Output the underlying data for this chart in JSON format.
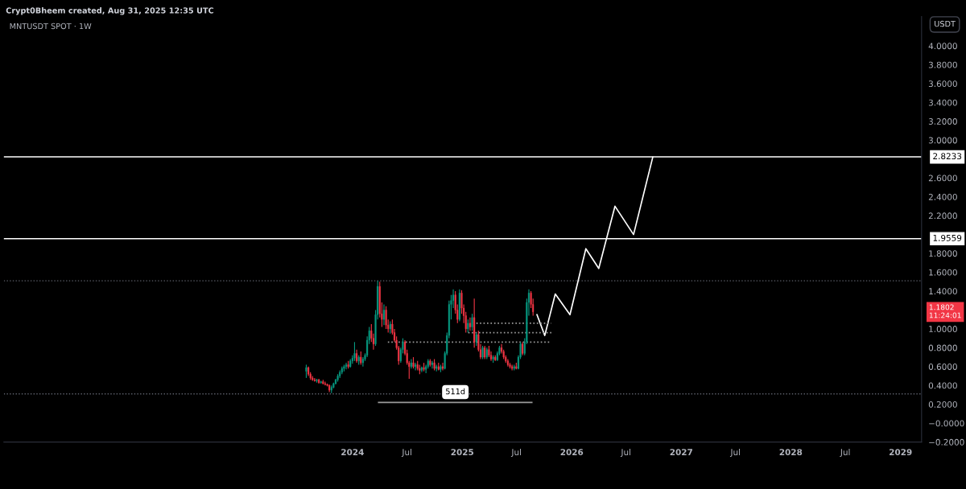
{
  "chart_data": {
    "type": "candlestick",
    "title": "MNTUSDT SPOT · 1W",
    "annotations": [
      "Crypt0Bheem created, Aug 31, 2025 12:35 UTC",
      "USDT",
      "1.1802\n11:24:01",
      {
        "text": "511d",
        "x": "2024-12-09",
        "y": 0.33
      }
    ],
    "x": [
      "2023-07-31",
      "2023-08-07",
      "2023-08-14",
      "2023-08-21",
      "2023-08-28",
      "2023-09-04",
      "2023-09-11",
      "2023-09-18",
      "2023-09-25",
      "2023-10-02",
      "2023-10-09",
      "2023-10-16",
      "2023-10-23",
      "2023-10-30",
      "2023-11-06",
      "2023-11-13",
      "2023-11-20",
      "2023-11-27",
      "2023-12-04",
      "2023-12-11",
      "2023-12-18",
      "2023-12-25",
      "2024-01-01",
      "2024-01-08",
      "2024-01-15",
      "2024-01-22",
      "2024-01-29",
      "2024-02-05",
      "2024-02-12",
      "2024-02-19",
      "2024-02-26",
      "2024-03-04",
      "2024-03-11",
      "2024-03-18",
      "2024-03-25",
      "2024-04-01",
      "2024-04-08",
      "2024-04-15",
      "2024-04-22",
      "2024-04-29",
      "2024-05-06",
      "2024-05-13",
      "2024-05-20",
      "2024-05-27",
      "2024-06-03",
      "2024-06-10",
      "2024-06-17",
      "2024-06-24",
      "2024-07-01",
      "2024-07-08",
      "2024-07-15",
      "2024-07-22",
      "2024-07-29",
      "2024-08-05",
      "2024-08-12",
      "2024-08-19",
      "2024-08-26",
      "2024-09-02",
      "2024-09-09",
      "2024-09-16",
      "2024-09-23",
      "2024-09-30",
      "2024-10-07",
      "2024-10-14",
      "2024-10-21",
      "2024-10-28",
      "2024-11-04",
      "2024-11-11",
      "2024-11-18",
      "2024-11-25",
      "2024-12-02",
      "2024-12-09",
      "2024-12-16",
      "2024-12-23",
      "2024-12-30",
      "2025-01-06",
      "2025-01-13",
      "2025-01-20",
      "2025-01-27",
      "2025-02-03",
      "2025-02-10",
      "2025-02-17",
      "2025-02-24",
      "2025-03-03",
      "2025-03-10",
      "2025-03-17",
      "2025-03-24",
      "2025-03-31",
      "2025-04-07",
      "2025-04-14",
      "2025-04-21",
      "2025-04-28",
      "2025-05-05",
      "2025-05-12",
      "2025-05-19",
      "2025-05-26",
      "2025-06-02",
      "2025-06-09",
      "2025-06-16",
      "2025-06-23",
      "2025-06-30",
      "2025-07-07",
      "2025-07-14",
      "2025-07-21",
      "2025-07-28",
      "2025-08-04",
      "2025-08-11",
      "2025-08-18",
      "2025-08-25"
    ],
    "ohlc": [
      [
        0.55,
        0.62,
        0.48,
        0.59
      ],
      [
        0.59,
        0.6,
        0.5,
        0.52
      ],
      [
        0.52,
        0.54,
        0.46,
        0.48
      ],
      [
        0.48,
        0.5,
        0.45,
        0.46
      ],
      [
        0.46,
        0.48,
        0.44,
        0.45
      ],
      [
        0.45,
        0.47,
        0.43,
        0.46
      ],
      [
        0.46,
        0.47,
        0.42,
        0.43
      ],
      [
        0.43,
        0.45,
        0.42,
        0.44
      ],
      [
        0.44,
        0.46,
        0.41,
        0.42
      ],
      [
        0.42,
        0.44,
        0.4,
        0.41
      ],
      [
        0.41,
        0.42,
        0.39,
        0.4
      ],
      [
        0.4,
        0.41,
        0.33,
        0.35
      ],
      [
        0.35,
        0.4,
        0.32,
        0.38
      ],
      [
        0.38,
        0.43,
        0.37,
        0.42
      ],
      [
        0.42,
        0.47,
        0.41,
        0.46
      ],
      [
        0.46,
        0.52,
        0.44,
        0.5
      ],
      [
        0.5,
        0.56,
        0.48,
        0.54
      ],
      [
        0.54,
        0.6,
        0.52,
        0.58
      ],
      [
        0.58,
        0.62,
        0.55,
        0.6
      ],
      [
        0.6,
        0.64,
        0.57,
        0.62
      ],
      [
        0.62,
        0.66,
        0.58,
        0.6
      ],
      [
        0.6,
        0.68,
        0.59,
        0.66
      ],
      [
        0.66,
        0.72,
        0.63,
        0.69
      ],
      [
        0.69,
        0.86,
        0.66,
        0.74
      ],
      [
        0.74,
        0.78,
        0.64,
        0.66
      ],
      [
        0.66,
        0.72,
        0.62,
        0.7
      ],
      [
        0.7,
        0.76,
        0.62,
        0.64
      ],
      [
        0.64,
        0.7,
        0.6,
        0.68
      ],
      [
        0.68,
        0.74,
        0.66,
        0.72
      ],
      [
        0.72,
        0.92,
        0.7,
        0.88
      ],
      [
        0.88,
        1.02,
        0.84,
        0.98
      ],
      [
        0.98,
        1.05,
        0.86,
        0.9
      ],
      [
        0.9,
        0.95,
        0.78,
        0.84
      ],
      [
        0.84,
        1.2,
        0.82,
        1.15
      ],
      [
        1.15,
        1.51,
        1.1,
        1.45
      ],
      [
        1.45,
        1.5,
        1.12,
        1.16
      ],
      [
        1.16,
        1.28,
        1.02,
        1.1
      ],
      [
        1.1,
        1.26,
        1.04,
        1.2
      ],
      [
        1.2,
        1.24,
        1.0,
        1.04
      ],
      [
        1.04,
        1.1,
        0.96,
        1.0
      ],
      [
        1.0,
        1.08,
        0.95,
        1.05
      ],
      [
        1.05,
        1.1,
        0.94,
        0.96
      ],
      [
        0.96,
        1.0,
        0.86,
        0.88
      ],
      [
        0.88,
        0.92,
        0.78,
        0.8
      ],
      [
        0.8,
        0.82,
        0.62,
        0.66
      ],
      [
        0.66,
        0.8,
        0.64,
        0.78
      ],
      [
        0.78,
        0.9,
        0.74,
        0.86
      ],
      [
        0.86,
        0.88,
        0.72,
        0.74
      ],
      [
        0.74,
        0.78,
        0.62,
        0.64
      ],
      [
        0.64,
        0.66,
        0.47,
        0.6
      ],
      [
        0.6,
        0.68,
        0.58,
        0.64
      ],
      [
        0.64,
        0.7,
        0.58,
        0.6
      ],
      [
        0.6,
        0.64,
        0.56,
        0.62
      ],
      [
        0.62,
        0.66,
        0.56,
        0.58
      ],
      [
        0.58,
        0.62,
        0.52,
        0.56
      ],
      [
        0.56,
        0.6,
        0.54,
        0.59
      ],
      [
        0.59,
        0.64,
        0.55,
        0.57
      ],
      [
        0.57,
        0.62,
        0.53,
        0.6
      ],
      [
        0.6,
        0.68,
        0.58,
        0.66
      ],
      [
        0.66,
        0.68,
        0.6,
        0.62
      ],
      [
        0.62,
        0.66,
        0.58,
        0.64
      ],
      [
        0.64,
        0.68,
        0.56,
        0.58
      ],
      [
        0.58,
        0.62,
        0.55,
        0.6
      ],
      [
        0.6,
        0.64,
        0.56,
        0.57
      ],
      [
        0.57,
        0.62,
        0.54,
        0.6
      ],
      [
        0.6,
        0.64,
        0.56,
        0.58
      ],
      [
        0.58,
        0.76,
        0.57,
        0.74
      ],
      [
        0.74,
        0.96,
        0.72,
        0.93
      ],
      [
        0.93,
        1.3,
        0.9,
        1.26
      ],
      [
        1.26,
        1.36,
        1.1,
        1.3
      ],
      [
        1.3,
        1.42,
        1.22,
        1.36
      ],
      [
        1.36,
        1.4,
        1.16,
        1.2
      ],
      [
        1.2,
        1.26,
        1.06,
        1.1
      ],
      [
        1.1,
        1.42,
        1.08,
        1.38
      ],
      [
        1.38,
        1.41,
        1.16,
        1.22
      ],
      [
        1.22,
        1.26,
        1.06,
        1.14
      ],
      [
        1.14,
        1.18,
        0.96,
        1.0
      ],
      [
        1.0,
        1.1,
        0.96,
        1.06
      ],
      [
        1.06,
        1.12,
        0.98,
        1.02
      ],
      [
        1.02,
        1.16,
        0.98,
        1.12
      ],
      [
        1.12,
        1.32,
        0.8,
        0.86
      ],
      [
        0.86,
        0.96,
        0.82,
        0.94
      ],
      [
        0.94,
        0.98,
        0.76,
        0.78
      ],
      [
        0.78,
        0.84,
        0.68,
        0.7
      ],
      [
        0.7,
        0.82,
        0.68,
        0.8
      ],
      [
        0.8,
        0.82,
        0.68,
        0.7
      ],
      [
        0.7,
        0.8,
        0.68,
        0.78
      ],
      [
        0.78,
        0.82,
        0.7,
        0.72
      ],
      [
        0.72,
        0.76,
        0.66,
        0.68
      ],
      [
        0.68,
        0.72,
        0.64,
        0.7
      ],
      [
        0.7,
        0.72,
        0.66,
        0.67
      ],
      [
        0.67,
        0.76,
        0.66,
        0.74
      ],
      [
        0.74,
        0.82,
        0.72,
        0.8
      ],
      [
        0.8,
        0.84,
        0.74,
        0.76
      ],
      [
        0.76,
        0.78,
        0.68,
        0.7
      ],
      [
        0.7,
        0.72,
        0.64,
        0.66
      ],
      [
        0.66,
        0.68,
        0.6,
        0.62
      ],
      [
        0.62,
        0.64,
        0.58,
        0.6
      ],
      [
        0.6,
        0.62,
        0.56,
        0.58
      ],
      [
        0.58,
        0.62,
        0.56,
        0.6
      ],
      [
        0.6,
        0.64,
        0.57,
        0.58
      ],
      [
        0.58,
        0.72,
        0.57,
        0.7
      ],
      [
        0.7,
        0.86,
        0.68,
        0.84
      ],
      [
        0.84,
        0.86,
        0.72,
        0.74
      ],
      [
        0.74,
        0.9,
        0.72,
        0.86
      ],
      [
        0.86,
        1.32,
        0.84,
        1.28
      ],
      [
        1.28,
        1.42,
        1.14,
        1.38
      ],
      [
        1.38,
        1.4,
        1.22,
        1.26
      ],
      [
        1.26,
        1.32,
        1.14,
        1.1802
      ]
    ],
    "series": [
      {
        "type": "line",
        "color": "#ffffff",
        "x": [
          "2025-09-07",
          "2025-10-03",
          "2025-11-07",
          "2025-12-26",
          "2026-02-17",
          "2026-04-01",
          "2026-05-25",
          "2026-07-26",
          "2026-09-28"
        ],
        "values": [
          1.15,
          0.93,
          1.37,
          1.15,
          1.85,
          1.64,
          2.3,
          2.0,
          2.82
        ]
      },
      {
        "type": "line",
        "color": "#9a9a9a",
        "line_style": "dotted",
        "x": [
          "2025-02-17",
          "2025-10-25"
        ],
        "values": [
          1.06,
          1.06
        ]
      },
      {
        "type": "line",
        "color": "#9a9a9a",
        "line_style": "dotted",
        "x": [
          "2025-01-21",
          "2025-10-25"
        ],
        "values": [
          0.96,
          0.96
        ]
      },
      {
        "type": "line",
        "color": "#9a9a9a",
        "line_style": "dotted",
        "x": [
          "2024-04-28",
          "2025-10-25"
        ],
        "values": [
          0.86,
          0.86
        ]
      },
      {
        "type": "line",
        "color": "#9a9a9a",
        "x": [
          "2024-03-28",
          "2025-08-21"
        ],
        "values": [
          0.22,
          0.22
        ]
      }
    ],
    "ref_lines": [
      {
        "axis": "y",
        "value": 2.8233,
        "label": "2.8233",
        "color": "#ffffff"
      },
      {
        "axis": "y",
        "value": 1.9559,
        "label": "1.9559",
        "color": "#ffffff"
      },
      {
        "axis": "y",
        "value": 1.51,
        "color": "#5d606b",
        "line_style": "dotted"
      },
      {
        "axis": "y",
        "value": 0.31,
        "color": "#5d606b",
        "line_style": "dotted"
      }
    ],
    "xlim": [
      "2020-10-26",
      "2029-03-12"
    ],
    "xticks": [
      {
        "value": "2024-01-01",
        "label": "2024"
      },
      {
        "value": "2024-07-01",
        "label": "Jul"
      },
      {
        "value": "2025-01-01",
        "label": "2025"
      },
      {
        "value": "2025-07-01",
        "label": "Jul"
      },
      {
        "value": "2026-01-01",
        "label": "2026"
      },
      {
        "value": "2026-07-01",
        "label": "Jul"
      },
      {
        "value": "2027-01-01",
        "label": "2027"
      },
      {
        "value": "2027-07-01",
        "label": "Jul"
      },
      {
        "value": "2028-01-01",
        "label": "2028"
      },
      {
        "value": "2028-07-01",
        "label": "Jul"
      },
      {
        "value": "2029-01-01",
        "label": "2029"
      }
    ],
    "ylim": [
      -0.2,
      4.31
    ],
    "yticks": [
      {
        "value": -0.2,
        "label": "−0.2000"
      },
      {
        "value": 0,
        "label": "−0.0000"
      },
      {
        "value": 0.2,
        "label": "0.2000"
      },
      {
        "value": 0.4,
        "label": "0.4000"
      },
      {
        "value": 0.6,
        "label": "0.6000"
      },
      {
        "value": 0.8,
        "label": "0.8000"
      },
      {
        "value": 1.0,
        "label": "1.0000"
      },
      {
        "value": 1.4,
        "label": "1.4000"
      },
      {
        "value": 1.6,
        "label": "1.6000"
      },
      {
        "value": 1.8,
        "label": "1.8000"
      },
      {
        "value": 2.2,
        "label": "2.2000"
      },
      {
        "value": 2.4,
        "label": "2.4000"
      },
      {
        "value": 2.6,
        "label": "2.6000"
      },
      {
        "value": 3.0,
        "label": "3.0000"
      },
      {
        "value": 3.2,
        "label": "3.2000"
      },
      {
        "value": 3.4,
        "label": "3.4000"
      },
      {
        "value": 3.6,
        "label": "3.6000"
      },
      {
        "value": 3.8,
        "label": "3.8000"
      },
      {
        "value": 4.0,
        "label": "4.0000"
      }
    ]
  }
}
